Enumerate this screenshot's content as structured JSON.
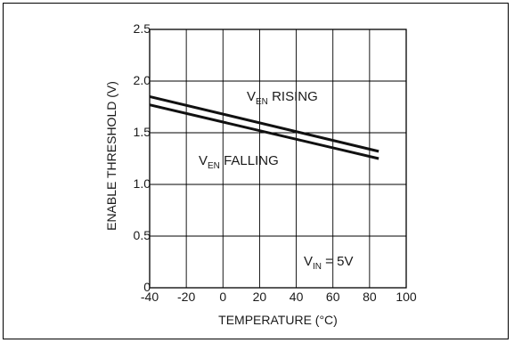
{
  "chart_data": {
    "type": "line",
    "title": "",
    "xlabel": "TEMPERATURE (°C)",
    "ylabel": "ENABLE THRESHOLD (V)",
    "xlim": [
      -40,
      100
    ],
    "ylim": [
      0,
      2.5
    ],
    "x_ticks": [
      -40,
      -20,
      0,
      20,
      40,
      60,
      80,
      100
    ],
    "y_ticks": [
      0,
      0.5,
      1.0,
      1.5,
      2.0,
      2.5
    ],
    "x_tick_labels": [
      "-40",
      "-20",
      "0",
      "20",
      "40",
      "60",
      "80",
      "100"
    ],
    "y_tick_labels": [
      "0",
      "0.5",
      "1.0",
      "1.5",
      "2.0",
      "2.5"
    ],
    "grid": true,
    "series": [
      {
        "name": "VEN RISING",
        "x": [
          -40,
          85
        ],
        "y": [
          1.85,
          1.32
        ]
      },
      {
        "name": "VEN FALLING",
        "x": [
          -40,
          85
        ],
        "y": [
          1.77,
          1.25
        ]
      }
    ],
    "annotations": {
      "rising": {
        "main": "V",
        "sub": "EN",
        "rest": " RISING"
      },
      "falling": {
        "main": "V",
        "sub": "EN",
        "rest": " FALLING"
      },
      "vin": {
        "main": "V",
        "sub": "IN",
        "rest": " = 5V"
      }
    }
  }
}
